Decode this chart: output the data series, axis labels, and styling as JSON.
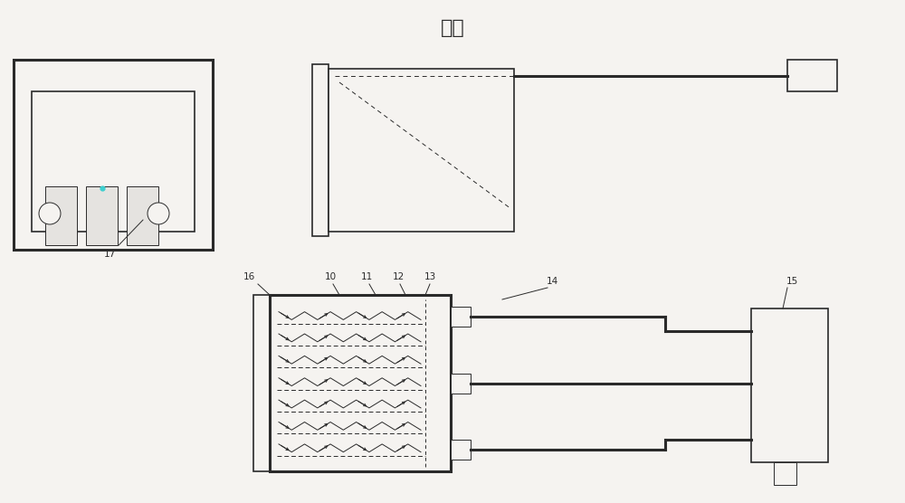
{
  "bg_color": "#f5f3f0",
  "line_color": "#2a2a2a",
  "title": "母头",
  "title_fontsize": 16,
  "label_17": "17",
  "label_16": "16",
  "label_10": "10",
  "label_11": "11",
  "label_12": "12",
  "label_13": "13",
  "label_14": "14",
  "label_15": "15"
}
